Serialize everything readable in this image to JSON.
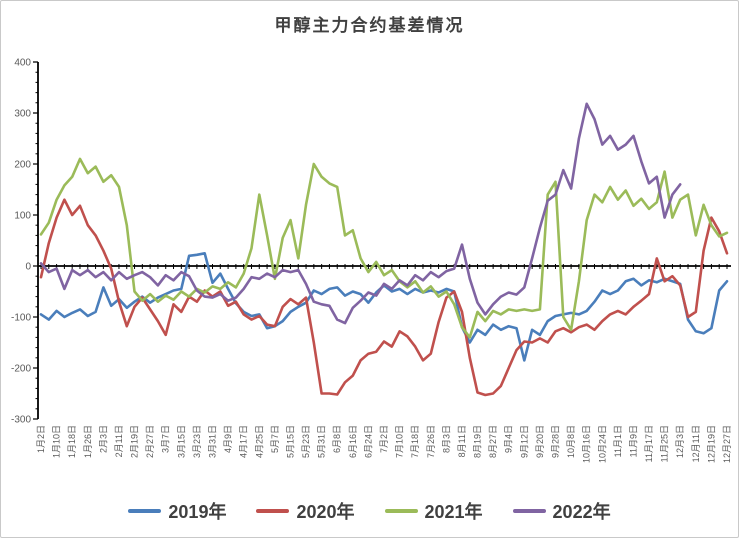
{
  "title": "甲醇主力合约基差情况",
  "axes": {
    "y_ticks": [
      400,
      300,
      200,
      100,
      0,
      -100,
      -200,
      -300
    ],
    "x_labels": [
      "1月2日",
      "1月10日",
      "1月18日",
      "1月26日",
      "2月3日",
      "2月11日",
      "2月19日",
      "2月27日",
      "3月7日",
      "3月15日",
      "3月23日",
      "3月31日",
      "4月9日",
      "4月17日",
      "4月25日",
      "5月7日",
      "5月15日",
      "5月23日",
      "5月31日",
      "6月8日",
      "6月16日",
      "6月24日",
      "7月2日",
      "7月10日",
      "7月18日",
      "7月26日",
      "8月3日",
      "8月11日",
      "8月19日",
      "8月27日",
      "9月4日",
      "9月12日",
      "9月20日",
      "9月28日",
      "10月8日",
      "10月16日",
      "10月24日",
      "11月1日",
      "11月9日",
      "11月17日",
      "11月25日",
      "12月3日",
      "12月11日",
      "12月19日",
      "12月27日"
    ]
  },
  "chart_data": {
    "type": "line",
    "title": "甲醇主力合约基差情况",
    "xlabel": "",
    "ylabel": "",
    "ylim": [
      -300,
      400
    ],
    "grid": false,
    "legend_position": "bottom",
    "categories": [
      "1月2日",
      "1月10日",
      "1月18日",
      "1月26日",
      "2月3日",
      "2月11日",
      "2月19日",
      "2月27日",
      "3月7日",
      "3月15日",
      "3月23日",
      "3月31日",
      "4月9日",
      "4月17日",
      "4月25日",
      "5月7日",
      "5月15日",
      "5月23日",
      "5月31日",
      "6月8日",
      "6月16日",
      "6月24日",
      "7月2日",
      "7月10日",
      "7月18日",
      "7月26日",
      "8月3日",
      "8月11日",
      "8月19日",
      "8月27日",
      "9月4日",
      "9月12日",
      "9月20日",
      "9月28日",
      "10月8日",
      "10月16日",
      "10月24日",
      "11月1日",
      "11月9日",
      "11月17日",
      "11月25日",
      "12月3日",
      "12月11日",
      "12月19日",
      "12月27日"
    ],
    "points_per_category": 2,
    "note": "values sampled every half category interval (~4 days); basis = spot - futures",
    "series": [
      {
        "name": "2019年",
        "color": "#4a7ebb",
        "values": [
          -95,
          -105,
          -88,
          -100,
          -92,
          -85,
          -98,
          -90,
          -42,
          -78,
          -65,
          -82,
          -70,
          -60,
          -72,
          -62,
          -55,
          -48,
          -45,
          20,
          22,
          25,
          -33,
          -15,
          -45,
          -73,
          -90,
          -98,
          -95,
          -122,
          -118,
          -108,
          -90,
          -80,
          -72,
          -48,
          -55,
          -45,
          -42,
          -58,
          -50,
          -55,
          -72,
          -52,
          -38,
          -50,
          -45,
          -55,
          -45,
          -52,
          -48,
          -52,
          -45,
          -50,
          -120,
          -150,
          -125,
          -135,
          -115,
          -125,
          -118,
          -122,
          -185,
          -125,
          -135,
          -108,
          -98,
          -95,
          -92,
          -95,
          -88,
          -70,
          -48,
          -55,
          -48,
          -30,
          -25,
          -38,
          -28,
          -32,
          -25,
          -30,
          -35,
          -105,
          -128,
          -132,
          -122,
          -48,
          -30
        ]
      },
      {
        "name": "2020年",
        "color": "#c0504d",
        "values": [
          -22,
          45,
          95,
          130,
          100,
          118,
          80,
          60,
          30,
          -5,
          -70,
          -118,
          -80,
          -62,
          -85,
          -108,
          -135,
          -75,
          -90,
          -60,
          -70,
          -48,
          -60,
          -50,
          -78,
          -70,
          -95,
          -105,
          -98,
          -115,
          -118,
          -80,
          -65,
          -75,
          -62,
          -150,
          -250,
          -250,
          -252,
          -228,
          -215,
          -185,
          -172,
          -168,
          -148,
          -158,
          -128,
          -138,
          -158,
          -185,
          -172,
          -110,
          -62,
          -50,
          -90,
          -180,
          -248,
          -253,
          -250,
          -235,
          -200,
          -165,
          -148,
          -150,
          -142,
          -150,
          -128,
          -122,
          -130,
          -120,
          -115,
          -125,
          -108,
          -95,
          -88,
          -95,
          -80,
          -68,
          -55,
          15,
          -30,
          -20,
          -38,
          -100,
          -90,
          30,
          95,
          68,
          25
        ]
      },
      {
        "name": "2021年",
        "color": "#9bbb59",
        "values": [
          62,
          85,
          130,
          158,
          175,
          210,
          182,
          195,
          165,
          178,
          155,
          80,
          -50,
          -68,
          -55,
          -70,
          -58,
          -66,
          -50,
          -60,
          -45,
          -52,
          -40,
          -45,
          -32,
          -42,
          -15,
          35,
          140,
          60,
          -25,
          55,
          90,
          15,
          120,
          200,
          175,
          162,
          155,
          60,
          70,
          15,
          -12,
          8,
          -18,
          -8,
          -30,
          -42,
          -30,
          -52,
          -40,
          -60,
          -50,
          -75,
          -120,
          -140,
          -90,
          -108,
          -88,
          -95,
          -85,
          -88,
          -85,
          -88,
          -85,
          140,
          165,
          -100,
          -125,
          -30,
          90,
          140,
          125,
          155,
          130,
          148,
          118,
          132,
          112,
          125,
          185,
          95,
          130,
          140,
          60,
          120,
          80,
          58,
          65
        ]
      },
      {
        "name": "2022年",
        "color": "#8064a2",
        "values": [
          5,
          -12,
          -5,
          -45,
          -8,
          -18,
          -8,
          -22,
          -12,
          -28,
          -12,
          -25,
          -18,
          -12,
          -22,
          -38,
          -18,
          -28,
          -12,
          -20,
          -48,
          -60,
          -62,
          -55,
          -68,
          -62,
          -45,
          -22,
          -25,
          -15,
          -22,
          -8,
          -12,
          -8,
          -35,
          -70,
          -75,
          -78,
          -105,
          -112,
          -82,
          -68,
          -52,
          -58,
          -35,
          -45,
          -28,
          -38,
          -18,
          -28,
          -12,
          -22,
          -10,
          -5,
          42,
          -25,
          -72,
          -95,
          -75,
          -60,
          -52,
          -56,
          -42,
          15,
          75,
          128,
          140,
          188,
          152,
          250,
          318,
          288,
          238,
          255,
          228,
          238,
          255,
          205,
          162,
          175,
          95,
          140,
          160
        ]
      }
    ]
  }
}
